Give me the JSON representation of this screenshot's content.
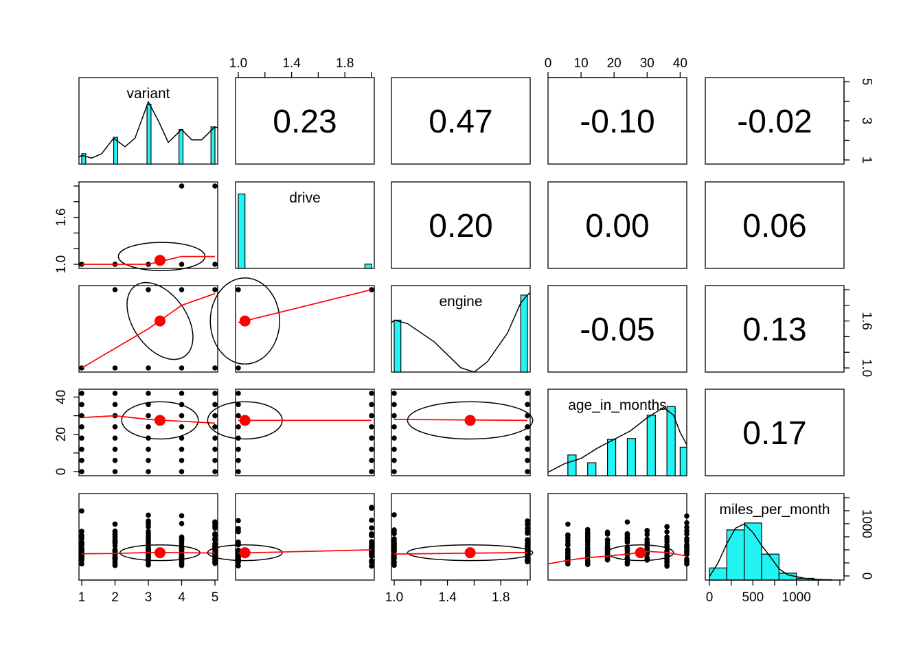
{
  "chart_data": {
    "type": "scatter-matrix",
    "variables": [
      "variant",
      "drive",
      "engine",
      "age_in_months",
      "miles_per_month"
    ],
    "ranges": [
      [
        1,
        5
      ],
      [
        1,
        2
      ],
      [
        1,
        2
      ],
      [
        0,
        42
      ],
      [
        0,
        1500
      ]
    ],
    "axis_ticks": [
      {
        "values": [
          1,
          2,
          3,
          4,
          5
        ],
        "labels": [
          "1",
          "2",
          "3",
          "4",
          "5"
        ],
        "right_values": [
          1,
          2,
          3,
          4,
          5
        ],
        "right_labels": [
          "1",
          "",
          "3",
          "",
          "5"
        ]
      },
      {
        "values": [
          1.0,
          1.2,
          1.4,
          1.6,
          1.8,
          2.0
        ],
        "labels": [
          "1.0",
          "",
          "1.4",
          "",
          "1.8",
          ""
        ],
        "left_labels": [
          "1.0",
          "",
          "",
          "1.6",
          "",
          ""
        ]
      },
      {
        "values": [
          1.0,
          1.2,
          1.4,
          1.6,
          1.8,
          2.0
        ],
        "labels": [
          "1.0",
          "",
          "1.4",
          "",
          "1.8",
          ""
        ],
        "right_labels": [
          "1.0",
          "",
          "",
          "1.6",
          "",
          ""
        ]
      },
      {
        "values": [
          0,
          10,
          20,
          30,
          40
        ],
        "labels": [
          "0",
          "10",
          "20",
          "30",
          "40"
        ]
      },
      {
        "values": [
          0,
          500,
          1000
        ],
        "labels": [
          "0",
          "500",
          "1000"
        ],
        "minor_values": [
          0,
          250,
          500,
          750,
          1000,
          1250,
          1500
        ]
      }
    ],
    "correlations": [
      {
        "row": 0,
        "col": 1,
        "value": "0.23"
      },
      {
        "row": 0,
        "col": 2,
        "value": "0.47"
      },
      {
        "row": 0,
        "col": 3,
        "value": "-0.10"
      },
      {
        "row": 0,
        "col": 4,
        "value": "-0.02"
      },
      {
        "row": 1,
        "col": 2,
        "value": "0.20"
      },
      {
        "row": 1,
        "col": 3,
        "value": "0.00"
      },
      {
        "row": 1,
        "col": 4,
        "value": "0.06"
      },
      {
        "row": 2,
        "col": 3,
        "value": "-0.05"
      },
      {
        "row": 2,
        "col": 4,
        "value": "0.13"
      },
      {
        "row": 3,
        "col": 4,
        "value": "0.17"
      }
    ],
    "histograms": {
      "variant": {
        "bins": [
          [
            1,
            1.12,
            0.12
          ],
          [
            1.96,
            2.08,
            0.31
          ],
          [
            2.96,
            3.08,
            0.69
          ],
          [
            3.92,
            4.04,
            0.4
          ],
          [
            4.88,
            5,
            0.43
          ]
        ],
        "density": [
          [
            0.85,
            0.08
          ],
          [
            1.0,
            0.1
          ],
          [
            1.3,
            0.07
          ],
          [
            1.6,
            0.12
          ],
          [
            1.96,
            0.3
          ],
          [
            2.3,
            0.2
          ],
          [
            2.6,
            0.3
          ],
          [
            3.0,
            0.72
          ],
          [
            3.3,
            0.5
          ],
          [
            3.6,
            0.25
          ],
          [
            4.0,
            0.4
          ],
          [
            4.3,
            0.28
          ],
          [
            4.6,
            0.28
          ],
          [
            5.0,
            0.43
          ],
          [
            5.1,
            0.42
          ]
        ]
      },
      "drive": {
        "bins": [
          [
            1,
            1.05,
            0.86
          ],
          [
            1.95,
            2,
            0.05
          ]
        ]
      },
      "engine": {
        "bins": [
          [
            1,
            1.05,
            0.6
          ],
          [
            1.95,
            2,
            0.89
          ]
        ],
        "density": [
          [
            0.95,
            0.57
          ],
          [
            1.0,
            0.6
          ],
          [
            1.1,
            0.56
          ],
          [
            1.3,
            0.35
          ],
          [
            1.5,
            0.05
          ],
          [
            1.6,
            0.0
          ],
          [
            1.7,
            0.12
          ],
          [
            1.85,
            0.45
          ],
          [
            1.95,
            0.8
          ],
          [
            2.0,
            0.89
          ],
          [
            2.05,
            0.92
          ]
        ]
      },
      "age_in_months": {
        "bins": [
          [
            6,
            8.5,
            0.24
          ],
          [
            12,
            14.5,
            0.15
          ],
          [
            18,
            20.5,
            0.42
          ],
          [
            24,
            26.5,
            0.43
          ],
          [
            30,
            32.5,
            0.7
          ],
          [
            36,
            38.5,
            0.8
          ],
          [
            40,
            42,
            0.33
          ]
        ],
        "density": [
          [
            0,
            0.04
          ],
          [
            5,
            0.14
          ],
          [
            10,
            0.2
          ],
          [
            15,
            0.32
          ],
          [
            20,
            0.42
          ],
          [
            25,
            0.52
          ],
          [
            30,
            0.67
          ],
          [
            35,
            0.79
          ],
          [
            38,
            0.7
          ],
          [
            40,
            0.5
          ],
          [
            42,
            0.36
          ]
        ]
      },
      "miles_per_month": {
        "bins": [
          [
            0,
            200,
            0.14
          ],
          [
            200,
            400,
            0.58
          ],
          [
            400,
            600,
            0.66
          ],
          [
            600,
            800,
            0.3
          ],
          [
            800,
            1000,
            0.08
          ],
          [
            1000,
            1200,
            0.02
          ],
          [
            1200,
            1400,
            0.005
          ]
        ],
        "density": [
          [
            0,
            0.04
          ],
          [
            100,
            0.2
          ],
          [
            200,
            0.42
          ],
          [
            300,
            0.6
          ],
          [
            400,
            0.65
          ],
          [
            500,
            0.55
          ],
          [
            600,
            0.4
          ],
          [
            700,
            0.27
          ],
          [
            800,
            0.13
          ],
          [
            900,
            0.06
          ],
          [
            1000,
            0.04
          ],
          [
            1100,
            0.02
          ],
          [
            1200,
            0.01
          ],
          [
            1400,
            0.0
          ]
        ]
      }
    },
    "panels": [
      {
        "row": 1,
        "col": 0,
        "points": [
          [
            1,
            1
          ],
          [
            2,
            1
          ],
          [
            3,
            1
          ],
          [
            4,
            1
          ],
          [
            5,
            1
          ],
          [
            4,
            2
          ],
          [
            5,
            2
          ]
        ],
        "mean": [
          3.35,
          1.05
        ],
        "ellipse": {
          "cx": 3.4,
          "cy": 1.1,
          "rx": 1.3,
          "ry": 0.18
        },
        "loess": [
          [
            1,
            1.0
          ],
          [
            3,
            1.0
          ],
          [
            4,
            1.1
          ],
          [
            5,
            1.1
          ]
        ]
      },
      {
        "row": 2,
        "col": 0,
        "points": [
          [
            1,
            1
          ],
          [
            2,
            1
          ],
          [
            3,
            1
          ],
          [
            4,
            1
          ],
          [
            5,
            1
          ],
          [
            2,
            2
          ],
          [
            3,
            2
          ],
          [
            4,
            2
          ],
          [
            5,
            2
          ]
        ],
        "mean": [
          3.35,
          1.6
        ],
        "ellipse": {
          "cx": 3.35,
          "cy": 1.6,
          "rx": 0.8,
          "ry": 0.55,
          "rotate": 35
        },
        "loess": [
          [
            1,
            1.0
          ],
          [
            3,
            1.5
          ],
          [
            4,
            1.8
          ],
          [
            5,
            1.95
          ]
        ]
      },
      {
        "row": 2,
        "col": 1,
        "points": [
          [
            1,
            1
          ],
          [
            1,
            2
          ],
          [
            2,
            2
          ]
        ],
        "mean": [
          1.05,
          1.6
        ],
        "ellipse": {
          "cx": 1.05,
          "cy": 1.6,
          "rx": 0.26,
          "ry": 0.55
        },
        "loess": [
          [
            1,
            1.58
          ],
          [
            2,
            2.0
          ]
        ]
      },
      {
        "row": 3,
        "col": 0,
        "points": "grid",
        "mean": [
          3.35,
          27.5
        ],
        "ellipse": {
          "cx": 3.35,
          "cy": 27.5,
          "rx": 1.15,
          "ry": 10
        },
        "loess": [
          [
            1,
            29
          ],
          [
            2,
            30
          ],
          [
            3,
            28
          ],
          [
            4,
            27
          ],
          [
            5,
            26
          ]
        ]
      },
      {
        "row": 3,
        "col": 1,
        "points": "grid",
        "mean": [
          1.05,
          27.5
        ],
        "ellipse": {
          "cx": 1.05,
          "cy": 27.5,
          "rx": 0.28,
          "ry": 10
        },
        "loess": [
          [
            1,
            27.5
          ],
          [
            2,
            27.5
          ]
        ]
      },
      {
        "row": 3,
        "col": 2,
        "points": "grid",
        "mean": [
          1.57,
          27.5
        ],
        "ellipse": {
          "cx": 1.57,
          "cy": 27.5,
          "rx": 0.47,
          "ry": 10
        },
        "loess": [
          [
            1,
            28
          ],
          [
            2,
            27.5
          ]
        ]
      },
      {
        "row": 4,
        "col": 0,
        "points": "cloud",
        "mean": [
          3.35,
          445
        ],
        "ellipse": {
          "cx": 3.35,
          "cy": 445,
          "rx": 1.2,
          "ry": 150
        },
        "loess": [
          [
            1,
            425
          ],
          [
            2,
            430
          ],
          [
            3,
            450
          ],
          [
            4,
            445
          ],
          [
            5,
            440
          ]
        ]
      },
      {
        "row": 4,
        "col": 1,
        "points": "cloud",
        "mean": [
          1.05,
          445
        ],
        "ellipse": {
          "cx": 1.05,
          "cy": 445,
          "rx": 0.28,
          "ry": 150
        },
        "loess": [
          [
            1,
            440
          ],
          [
            2,
            500
          ]
        ]
      },
      {
        "row": 4,
        "col": 2,
        "points": "cloud",
        "mean": [
          1.57,
          445
        ],
        "ellipse": {
          "cx": 1.57,
          "cy": 445,
          "rx": 0.47,
          "ry": 150
        },
        "loess": [
          [
            1,
            420
          ],
          [
            2,
            450
          ]
        ]
      },
      {
        "row": 4,
        "col": 3,
        "points": "cloud",
        "mean": [
          28,
          445
        ],
        "ellipse": {
          "cx": 28,
          "cy": 445,
          "rx": 10,
          "ry": 150
        },
        "loess": [
          [
            0,
            230
          ],
          [
            6,
            300
          ],
          [
            12,
            350
          ],
          [
            18,
            380
          ],
          [
            24,
            420
          ],
          [
            30,
            470
          ],
          [
            36,
            450
          ],
          [
            42,
            380
          ]
        ]
      }
    ]
  }
}
